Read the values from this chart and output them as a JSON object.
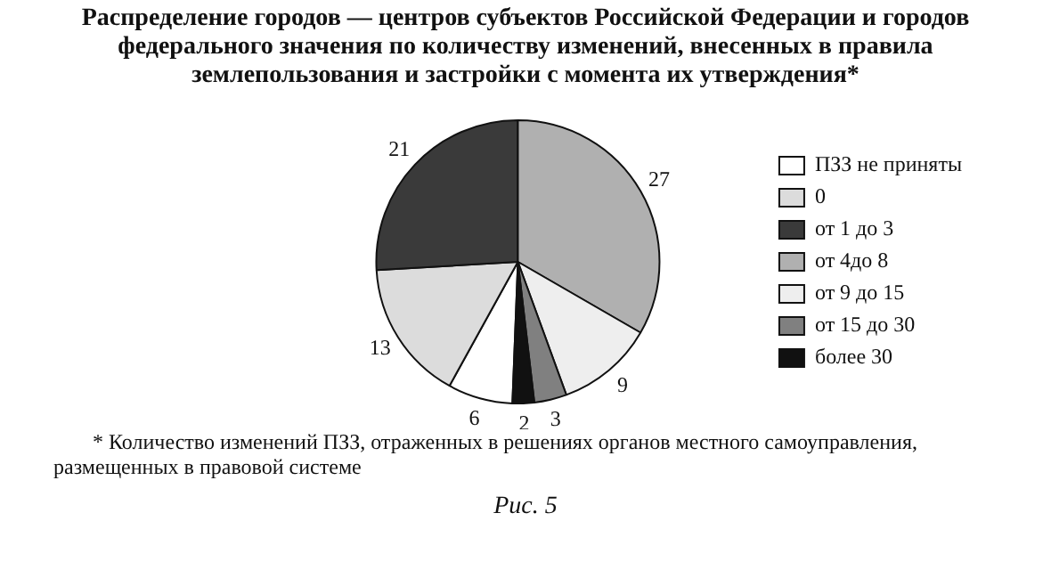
{
  "chart_data": {
    "type": "pie",
    "title": "Распределение городов — центров субъектов Российской Федерации и городов федерального значения по количеству изменений, внесенных в правила землепользования и застройки с момента их утверждения*",
    "categories": [
      "ПЗЗ не приняты",
      "0",
      "от 1 до 3",
      "от 4до 8",
      "от 9 до 15",
      "от 15 до 30",
      "более 30"
    ],
    "values": [
      6,
      13,
      21,
      27,
      9,
      3,
      2
    ],
    "colors": [
      "#ffffff",
      "#dcdcdc",
      "#3a3a3a",
      "#b0b0b0",
      "#eeeeee",
      "#808080",
      "#111111"
    ],
    "data_labels": true,
    "legend": "right",
    "annotations": [
      "* Количество изменений ПЗЗ, отраженных в решениях органов местного самоуправления, размещенных в правовой системе",
      "Рис. 5"
    ]
  }
}
